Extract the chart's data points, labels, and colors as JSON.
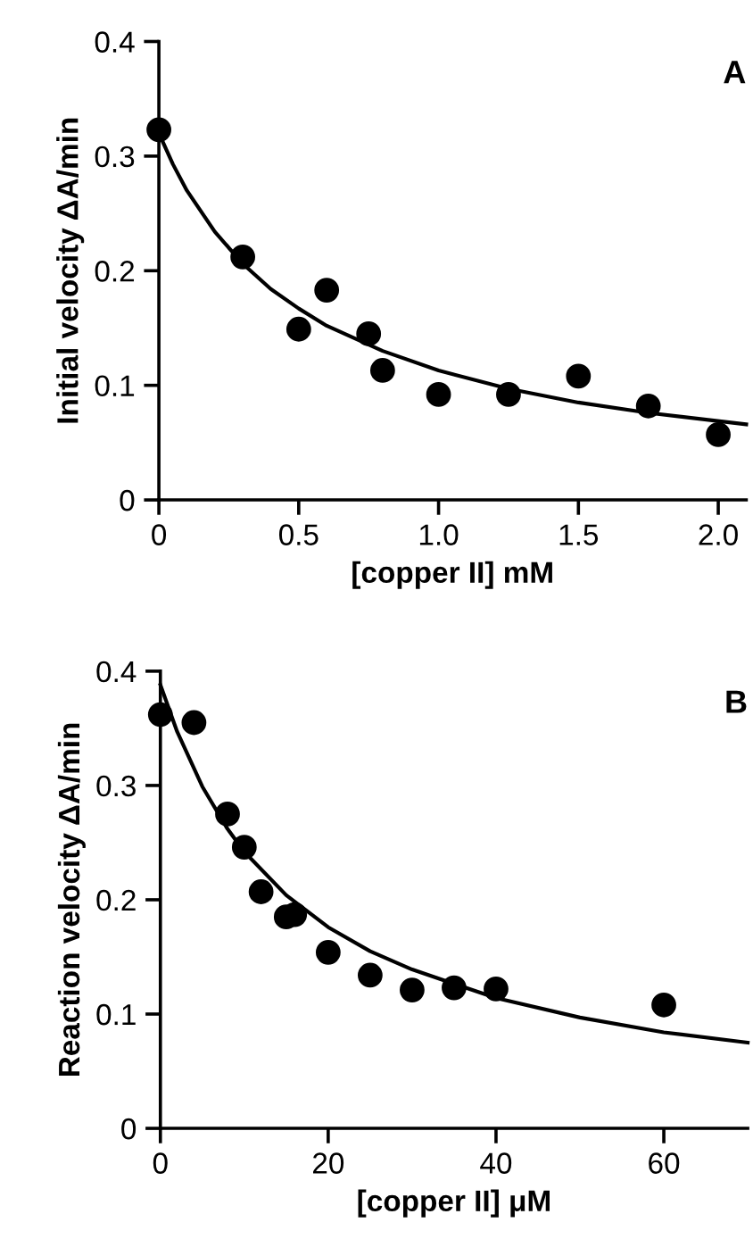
{
  "chart_data": [
    {
      "type": "scatter",
      "xlabel": "[copper II] mM",
      "ylabel": "Initial velocity ΔA/min",
      "annotations": [
        "A"
      ],
      "xlim": [
        0,
        2.1
      ],
      "ylim": [
        0,
        0.4
      ],
      "xticks": [
        0,
        0.5,
        {
          "value": 1.0,
          "label": "1.0"
        },
        1.5,
        {
          "value": 2.0,
          "label": "2.0"
        }
      ],
      "yticks": [
        0,
        0.1,
        0.2,
        0.3,
        0.4
      ],
      "grid": false,
      "legend": false,
      "marker": "circle",
      "series": [
        {
          "color": "#000000",
          "x": [
            0,
            0.3,
            0.5,
            0.6,
            0.75,
            0.8,
            1.0,
            1.25,
            1.5,
            1.75,
            2.0
          ],
          "values": [
            0.323,
            0.212,
            0.149,
            0.183,
            0.145,
            0.113,
            0.092,
            0.092,
            0.108,
            0.082,
            0.057
          ]
        },
        {
          "type": "line",
          "color": "#000000",
          "marker": "none",
          "x": [
            0,
            0.05,
            0.1,
            0.2,
            0.3,
            0.4,
            0.5,
            0.6,
            0.8,
            1.0,
            1.25,
            1.5,
            1.75,
            2.1
          ],
          "values": [
            0.32,
            0.293,
            0.27,
            0.234,
            0.206,
            0.184,
            0.167,
            0.152,
            0.13,
            0.113,
            0.097,
            0.085,
            0.076,
            0.066
          ]
        }
      ]
    },
    {
      "type": "scatter",
      "xlabel": "[copper II] μM",
      "ylabel": "Reaction velocity ΔA/min",
      "annotations": [
        "B"
      ],
      "xlim": [
        0,
        70
      ],
      "ylim": [
        0,
        0.4
      ],
      "xticks": [
        0,
        20,
        40,
        60
      ],
      "yticks": [
        0,
        0.1,
        0.2,
        0.3,
        0.4
      ],
      "grid": false,
      "legend": false,
      "marker": "circle",
      "series": [
        {
          "color": "#000000",
          "x": [
            0,
            4,
            8,
            10,
            12,
            15,
            16,
            20,
            25,
            30,
            35,
            40,
            60
          ],
          "values": [
            0.362,
            0.355,
            0.275,
            0.246,
            0.207,
            0.185,
            0.187,
            0.154,
            0.134,
            0.121,
            0.123,
            0.122,
            0.108
          ]
        },
        {
          "type": "line",
          "color": "#000000",
          "marker": "none",
          "x": [
            0,
            2,
            5,
            8,
            10,
            15,
            20,
            25,
            30,
            40,
            50,
            60,
            70
          ],
          "values": [
            0.388,
            0.347,
            0.299,
            0.262,
            0.242,
            0.204,
            0.176,
            0.155,
            0.139,
            0.114,
            0.097,
            0.084,
            0.075
          ]
        }
      ]
    }
  ]
}
